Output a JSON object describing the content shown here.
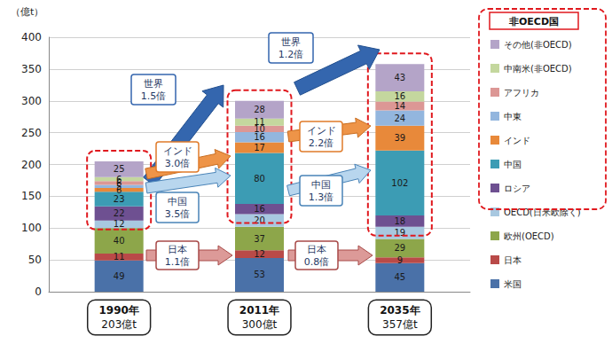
{
  "chart_data": {
    "type": "bar",
    "stacked": true,
    "data_labels": true,
    "grid": true,
    "legend": "right",
    "y_label": "（億t）",
    "categories": [
      "1990年",
      "2011年",
      "2035年"
    ],
    "totals": [
      "203億t",
      "300億t",
      "357億t"
    ],
    "ylim": [
      0,
      400
    ],
    "yticks": [
      0,
      50,
      100,
      150,
      200,
      250,
      300,
      350,
      400
    ],
    "legend_group": {
      "title": "非OECD国",
      "series": [
        "その他(非OECD)",
        "中南米(非OECD)",
        "アフリカ",
        "中東",
        "インド",
        "中国",
        "ロシア"
      ]
    },
    "series": [
      {
        "name": "米国",
        "color": "#4a71a8",
        "values": [
          49,
          53,
          45
        ]
      },
      {
        "name": "日本",
        "color": "#b94a48",
        "values": [
          11,
          12,
          9
        ]
      },
      {
        "name": "欧州(OECD)",
        "color": "#8da64a",
        "values": [
          40,
          37,
          29
        ]
      },
      {
        "name": "OECD(日米欧除く)",
        "color": "#a8c8e0",
        "values": [
          12,
          20,
          19
        ]
      },
      {
        "name": "ロシア",
        "color": "#6e5091",
        "values": [
          22,
          16,
          18
        ]
      },
      {
        "name": "中国",
        "color": "#3c9cb4",
        "values": [
          23,
          80,
          102
        ]
      },
      {
        "name": "インド",
        "color": "#e8893a",
        "values": [
          6,
          17,
          39
        ]
      },
      {
        "name": "中東",
        "color": "#93b6de",
        "values": [
          5,
          16,
          24
        ]
      },
      {
        "name": "アフリカ",
        "color": "#dc9795",
        "values": [
          6,
          10,
          14
        ]
      },
      {
        "name": "中南米(非OECD)",
        "color": "#c4d79e",
        "values": [
          6,
          11,
          16
        ]
      },
      {
        "name": "その他(非OECD)",
        "color": "#b4a4c8",
        "values": [
          25,
          28,
          43
        ]
      }
    ],
    "annotations": [
      {
        "lines": [
          "世界",
          "1.5倍"
        ]
      },
      {
        "lines": [
          "世界",
          "1.2倍"
        ]
      },
      {
        "lines": [
          "インド",
          "3.0倍"
        ]
      },
      {
        "lines": [
          "中国",
          "3.5倍"
        ]
      },
      {
        "lines": [
          "インド",
          "2.2倍"
        ]
      },
      {
        "lines": [
          "中国",
          "1.3倍"
        ]
      },
      {
        "lines": [
          "日本",
          "1.1倍"
        ]
      },
      {
        "lines": [
          "日本",
          "0.8倍"
        ]
      }
    ]
  }
}
